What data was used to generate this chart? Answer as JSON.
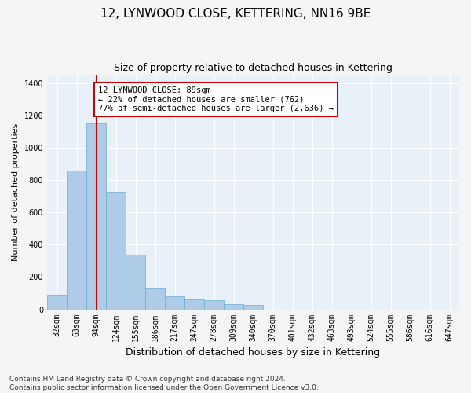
{
  "title": "12, LYNWOOD CLOSE, KETTERING, NN16 9BE",
  "subtitle": "Size of property relative to detached houses in Kettering",
  "xlabel": "Distribution of detached houses by size in Kettering",
  "ylabel": "Number of detached properties",
  "categories": [
    "32sqm",
    "63sqm",
    "94sqm",
    "124sqm",
    "155sqm",
    "186sqm",
    "217sqm",
    "247sqm",
    "278sqm",
    "309sqm",
    "340sqm",
    "370sqm",
    "401sqm",
    "432sqm",
    "463sqm",
    "493sqm",
    "524sqm",
    "555sqm",
    "586sqm",
    "616sqm",
    "647sqm"
  ],
  "values": [
    90,
    860,
    1150,
    730,
    340,
    130,
    80,
    60,
    55,
    30,
    25,
    0,
    0,
    0,
    0,
    0,
    0,
    0,
    0,
    0,
    0
  ],
  "bar_color": "#aecce8",
  "bar_edge_color": "#6baad0",
  "vline_x_idx": 2,
  "vline_color": "#cc0000",
  "annotation_text": "12 LYNWOOD CLOSE: 89sqm\n← 22% of detached houses are smaller (762)\n77% of semi-detached houses are larger (2,636) →",
  "annotation_box_color": "#ffffff",
  "annotation_box_edge": "#cc0000",
  "ylim": [
    0,
    1450
  ],
  "yticks": [
    0,
    200,
    400,
    600,
    800,
    1000,
    1200,
    1400
  ],
  "bg_color": "#e8f0f8",
  "grid_color": "#ffffff",
  "footer_line1": "Contains HM Land Registry data © Crown copyright and database right 2024.",
  "footer_line2": "Contains public sector information licensed under the Open Government Licence v3.0.",
  "title_fontsize": 11,
  "subtitle_fontsize": 9,
  "xlabel_fontsize": 9,
  "ylabel_fontsize": 8,
  "tick_fontsize": 7,
  "footer_fontsize": 6.5
}
